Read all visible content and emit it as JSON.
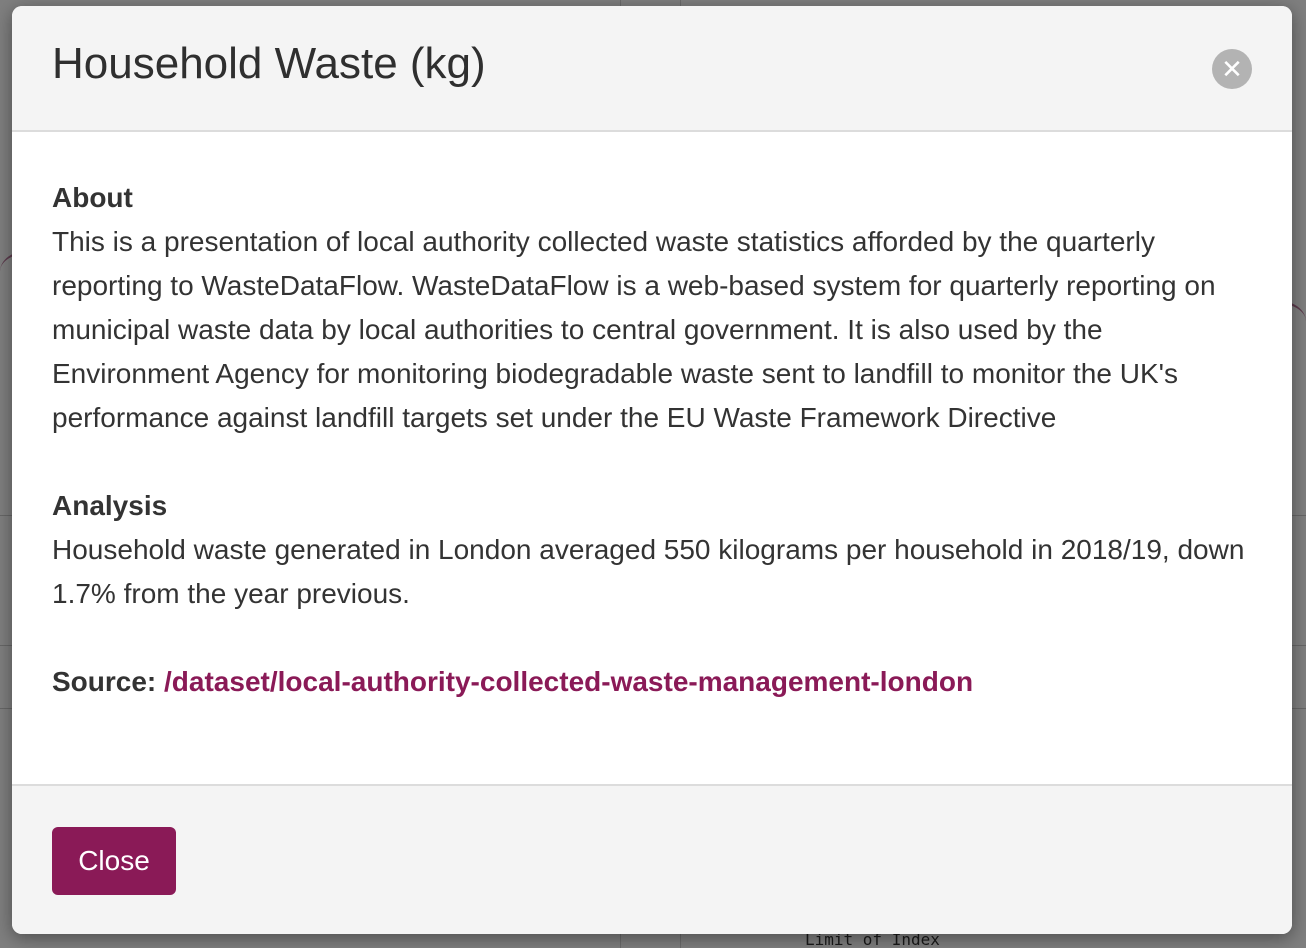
{
  "modal": {
    "title": "Household Waste (kg)",
    "close_icon": "close-icon",
    "about_heading": "About",
    "about_text": "This is a presentation of local authority collected waste statistics afforded by the quarterly reporting to WasteDataFlow. WasteDataFlow is a web-based system for quarterly reporting on municipal waste data by local authorities to central government. It is also used by the Environment Agency for monitoring biodegradable waste sent to landfill to monitor the UK's performance against landfill targets set under the EU Waste Framework Directive",
    "analysis_heading": "Analysis",
    "analysis_text": "Household waste generated in London averaged 550 kilograms per household in 2018/19, down 1.7% from the year previous.",
    "source_label": "Source:",
    "source_link": "/dataset/local-authority-collected-waste-management-london",
    "close_button": "Close"
  },
  "background": {
    "partial_text": "Limit of Index"
  },
  "colors": {
    "accent": "#8a1a57",
    "header_bg": "#f4f4f4",
    "close_icon_bg": "#b3b3b3"
  }
}
